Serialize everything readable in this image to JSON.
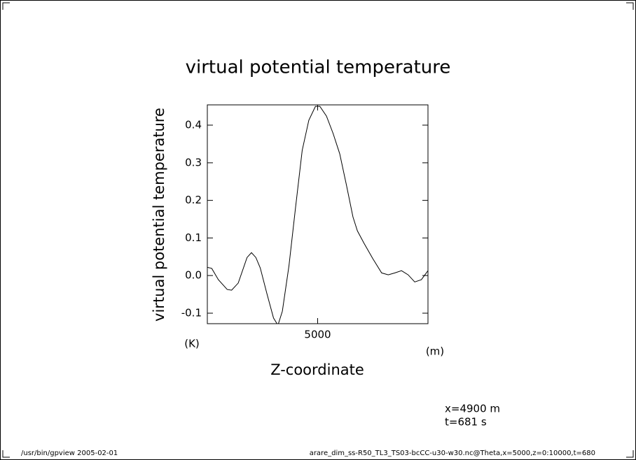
{
  "chart_data": {
    "type": "line",
    "title": "virtual potential temperature",
    "y_label": "virtual potential temperature",
    "x_label": "Z-coordinate",
    "y_unit": "(K)",
    "x_unit": "(m)",
    "annotations": [
      "x=4900 m",
      "t=681 s"
    ],
    "footer_left": "/usr/bin/gpview  2005-02-01",
    "footer_right": "arare_dim_ss-R50_TL3_TS03-bcCC-u30-w30.nc@Theta,x=5000,z=0:10000,t=680",
    "x": [
      0,
      200,
      500,
      900,
      1100,
      1400,
      1800,
      2000,
      2200,
      2400,
      2700,
      3000,
      3200,
      3400,
      3700,
      4000,
      4300,
      4600,
      4900,
      5100,
      5400,
      5700,
      6000,
      6300,
      6600,
      6800,
      7100,
      7500,
      7900,
      8200,
      8500,
      8800,
      9100,
      9400,
      9700,
      10000
    ],
    "values": [
      0.022,
      0.019,
      -0.011,
      -0.037,
      -0.039,
      -0.02,
      0.048,
      0.061,
      0.048,
      0.02,
      -0.048,
      -0.113,
      -0.132,
      -0.095,
      0.026,
      0.182,
      0.333,
      0.413,
      0.45,
      0.45,
      0.424,
      0.378,
      0.324,
      0.242,
      0.156,
      0.119,
      0.086,
      0.045,
      0.007,
      0.002,
      0.007,
      0.013,
      0.002,
      -0.017,
      -0.011,
      0.013
    ],
    "color": "#000000",
    "xlim": [
      0,
      10000
    ],
    "ylim": [
      -0.128,
      0.454
    ],
    "xticks": [
      5000
    ],
    "yticks": [
      -0.1,
      {
        "value": 0,
        "label": "0.0"
      },
      0.1,
      0.2,
      0.3,
      0.4
    ]
  }
}
